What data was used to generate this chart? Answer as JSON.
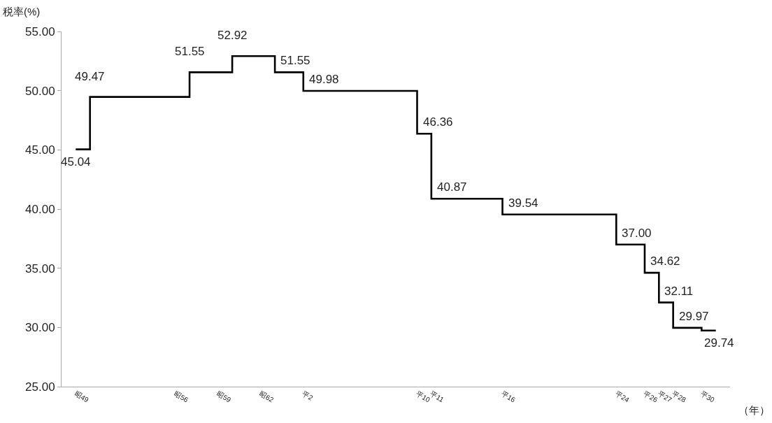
{
  "chart_data": {
    "type": "step",
    "xlabel": "（年）",
    "ylabel": "税率(%)",
    "categories": [
      "昭49",
      null,
      null,
      null,
      null,
      null,
      null,
      "昭56",
      null,
      null,
      "昭59",
      null,
      null,
      "昭62",
      null,
      null,
      "平2",
      null,
      null,
      null,
      null,
      null,
      null,
      null,
      "平10",
      "平11",
      null,
      null,
      null,
      null,
      "平16",
      null,
      null,
      null,
      null,
      null,
      null,
      null,
      "平24",
      null,
      "平26",
      "平27",
      "平28",
      null,
      "平30",
      null
    ],
    "values": [
      45.04,
      49.47,
      49.47,
      49.47,
      49.47,
      49.47,
      49.47,
      49.47,
      51.55,
      51.55,
      51.55,
      52.92,
      52.92,
      52.92,
      51.55,
      51.55,
      49.98,
      49.98,
      49.98,
      49.98,
      49.98,
      49.98,
      49.98,
      49.98,
      46.36,
      40.87,
      40.87,
      40.87,
      40.87,
      40.87,
      39.54,
      39.54,
      39.54,
      39.54,
      39.54,
      39.54,
      39.54,
      39.54,
      37.0,
      37.0,
      34.62,
      32.11,
      29.97,
      29.97,
      29.74,
      29.74
    ],
    "value_labels": [
      "45.04",
      "49.47",
      null,
      null,
      null,
      null,
      null,
      null,
      "51.55",
      null,
      null,
      "52.92",
      null,
      null,
      "51.55",
      null,
      "49.98",
      null,
      null,
      null,
      null,
      null,
      null,
      null,
      "46.36",
      "40.87",
      null,
      null,
      null,
      null,
      "39.54",
      null,
      null,
      null,
      null,
      null,
      null,
      null,
      "37.00",
      null,
      "34.62",
      "32.11",
      "29.97",
      null,
      "29.74",
      null
    ],
    "color": "#000000",
    "line_style": "solid",
    "grid": false,
    "legend": false,
    "ylim": [
      25,
      55
    ],
    "yticks": [
      {
        "value": 25,
        "label": "25.00"
      },
      {
        "value": 30,
        "label": "30.00"
      },
      {
        "value": 35,
        "label": "35.00"
      },
      {
        "value": 40,
        "label": "40.00"
      },
      {
        "value": 45,
        "label": "45.00"
      },
      {
        "value": 50,
        "label": "50.00"
      },
      {
        "value": 55,
        "label": "55.00"
      }
    ]
  }
}
